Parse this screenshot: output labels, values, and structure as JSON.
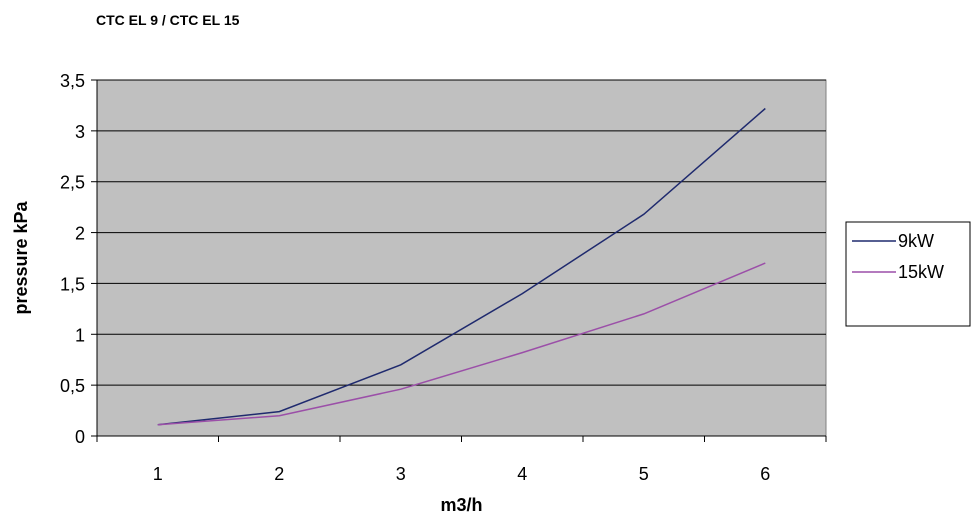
{
  "chart_data": {
    "type": "line",
    "title": "CTC EL 9 / CTC EL 15",
    "xlabel": "m3/h",
    "ylabel": "pressure kPa",
    "categories": [
      "1",
      "2",
      "3",
      "4",
      "5",
      "6"
    ],
    "x_tick_labels": [
      "1",
      "2",
      "3",
      "4",
      "5",
      "6"
    ],
    "y_tick_labels": [
      "0",
      "0,5",
      "1",
      "1,5",
      "2",
      "2,5",
      "3",
      "3,5"
    ],
    "y_ticks": [
      0,
      0.5,
      1,
      1.5,
      2,
      2.5,
      3,
      3.5
    ],
    "ylim": [
      0,
      3.5
    ],
    "grid": true,
    "plot_background": "#C0C0C0",
    "legend_position": "right",
    "series": [
      {
        "name": "9kW",
        "values": [
          0.11,
          0.24,
          0.7,
          1.4,
          2.18,
          3.22
        ],
        "color": "#1F2A6E"
      },
      {
        "name": "15kW",
        "values": [
          0.11,
          0.2,
          0.46,
          0.82,
          1.2,
          1.7
        ],
        "color": "#9B4FA8"
      }
    ]
  }
}
